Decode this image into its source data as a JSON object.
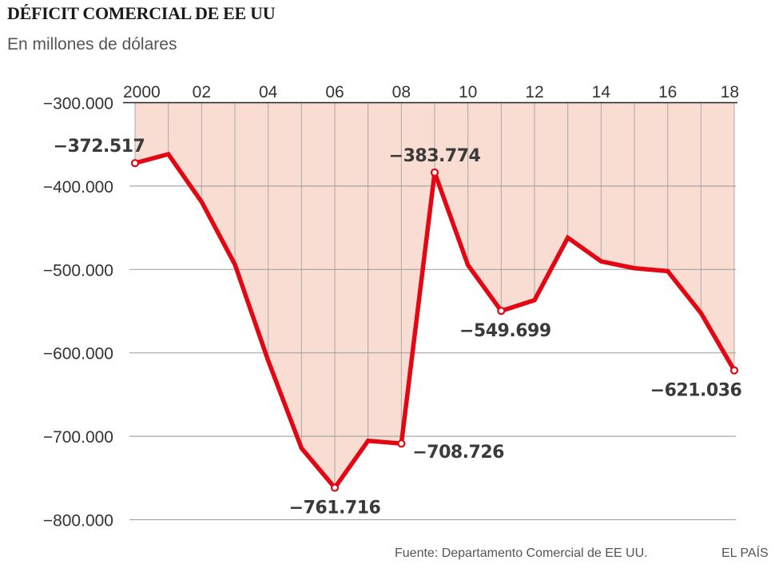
{
  "header": {
    "title": "DÉFICIT COMERCIAL DE EE UU",
    "subtitle": "En millones de dólares"
  },
  "footer": {
    "source": "Fuente: Departamento Comercial de EE UU.",
    "brand": "EL PAÍS"
  },
  "colors": {
    "line": "#e30613",
    "fill": "#f9ddd3",
    "grid": "#9a9a9a",
    "axis": "#222222",
    "label": "#3a3a3a"
  },
  "chart_data": {
    "type": "area",
    "title": "DÉFICIT COMERCIAL DE EE UU",
    "subtitle": "En millones de dólares",
    "xlabel": "",
    "ylabel": "",
    "x": [
      2000,
      2001,
      2002,
      2003,
      2004,
      2005,
      2006,
      2007,
      2008,
      2009,
      2010,
      2011,
      2012,
      2013,
      2014,
      2015,
      2016,
      2017,
      2018
    ],
    "series": [
      {
        "name": "Déficit comercial",
        "values": [
          -372517,
          -361800,
          -418900,
          -494000,
          -609300,
          -714200,
          -761716,
          -705400,
          -708726,
          -383774,
          -494700,
          -549699,
          -536800,
          -461900,
          -490300,
          -498500,
          -502000,
          -552300,
          -621036
        ]
      }
    ],
    "ylim": [
      -800000,
      -300000
    ],
    "xlim": [
      2000,
      2018
    ],
    "yticks": [
      {
        "value": -300000,
        "label": "−300.000"
      },
      {
        "value": -400000,
        "label": "−400.000"
      },
      {
        "value": -500000,
        "label": "−500.000"
      },
      {
        "value": -600000,
        "label": "−600.000"
      },
      {
        "value": -700000,
        "label": "−700.000"
      },
      {
        "value": -800000,
        "label": "−800.000"
      }
    ],
    "xticks": [
      {
        "value": 2000,
        "label": "2000"
      },
      {
        "value": 2002,
        "label": "02"
      },
      {
        "value": 2004,
        "label": "04"
      },
      {
        "value": 2006,
        "label": "06"
      },
      {
        "value": 2008,
        "label": "08"
      },
      {
        "value": 2010,
        "label": "10"
      },
      {
        "value": 2012,
        "label": "12"
      },
      {
        "value": 2014,
        "label": "14"
      },
      {
        "value": 2016,
        "label": "16"
      },
      {
        "value": 2018,
        "label": "18"
      }
    ],
    "annotations": [
      {
        "x": 2000,
        "label": "−372.517",
        "position": "above"
      },
      {
        "x": 2006,
        "label": "−761.716",
        "position": "below"
      },
      {
        "x": 2008,
        "label": "−708.726",
        "position": "right"
      },
      {
        "x": 2009,
        "label": "−383.774",
        "position": "above"
      },
      {
        "x": 2011,
        "label": "−549.699",
        "position": "below"
      },
      {
        "x": 2018,
        "label": "−621.036",
        "position": "below"
      }
    ],
    "grid": true,
    "x_axis_position": "top",
    "fill": "area between line and top axis"
  }
}
